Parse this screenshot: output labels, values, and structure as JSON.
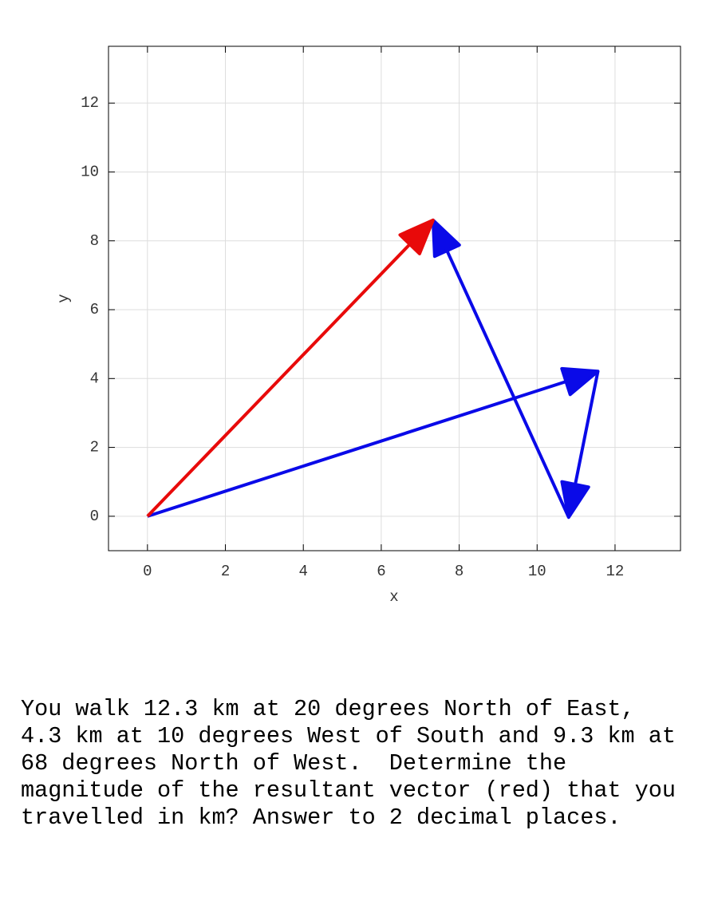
{
  "chart_data": {
    "type": "vector",
    "xlabel": "x",
    "ylabel": "y",
    "xlim": [
      -1,
      13.68
    ],
    "ylim": [
      -1,
      13.65
    ],
    "xticks": [
      0,
      2,
      4,
      6,
      8,
      10,
      12
    ],
    "yticks": [
      0,
      2,
      4,
      6,
      8,
      10,
      12
    ],
    "grid": true,
    "vectors": [
      {
        "color": "#0a0ae8",
        "x0": 0,
        "y0": 0,
        "x1": 11.56,
        "y1": 4.21
      },
      {
        "color": "#0a0ae8",
        "x0": 11.56,
        "y0": 4.21,
        "x1": 10.81,
        "y1": -0.03
      },
      {
        "color": "#0a0ae8",
        "x0": 10.81,
        "y0": -0.03,
        "x1": 7.33,
        "y1": 8.6
      },
      {
        "color": "#e80a0a",
        "x0": 0,
        "y0": 0,
        "x1": 7.33,
        "y1": 8.6
      }
    ]
  },
  "question": {
    "lines": [
      "You walk 12.3 km at 20 degrees North of East,",
      "4.3 km at 10 degrees West of South and 9.3 km at",
      "68 degrees North of West.  Determine the",
      "magnitude of the resultant vector (red) that you",
      "travelled in km? Answer to 2 decimal places."
    ]
  }
}
